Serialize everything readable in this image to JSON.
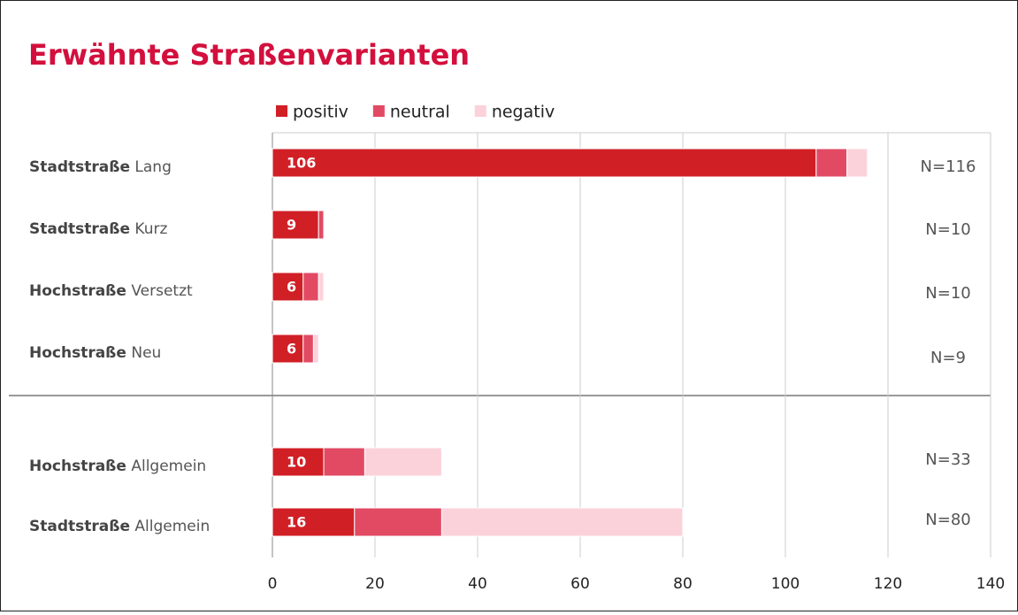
{
  "chart_data": {
    "type": "stacked_bar_horizontal",
    "title": "Erwähnte Straßenvarianten",
    "categories": [
      "Stadtstraße Lang",
      "Stadtstraße Kurz",
      "Hochstraße Versetzt",
      "Hochstraße Neu",
      "Hochstraße Allgemein",
      "Stadtstraße Allgemein"
    ],
    "series": [
      {
        "name": "positiv",
        "color": "#d11f26",
        "values": [
          106,
          9,
          6,
          6,
          10,
          16
        ],
        "data_labels": true
      },
      {
        "name": "neutral",
        "color": "#e24a64",
        "values": [
          6,
          1,
          3,
          2,
          8,
          17
        ]
      },
      {
        "name": "negativ",
        "color": "#fcd2da",
        "values": [
          4,
          0,
          1,
          1,
          15,
          47
        ]
      }
    ],
    "annotations": [
      "N=116",
      "N=10",
      "N=10",
      "N=9",
      "N=33",
      "N=80"
    ],
    "xlim": [
      0,
      140
    ],
    "xticks": [
      0,
      20,
      40,
      60,
      80,
      100,
      120,
      140
    ],
    "grid": true,
    "legend": "top"
  }
}
